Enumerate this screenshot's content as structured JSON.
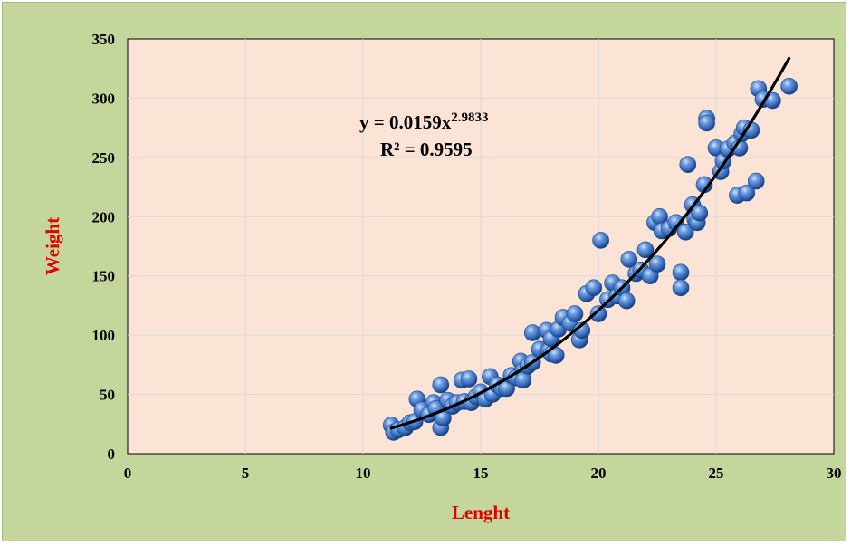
{
  "chart_data": {
    "type": "scatter",
    "title": "",
    "xlabel": "Lenght",
    "ylabel": "Weight",
    "xlim": [
      0,
      30
    ],
    "ylim": [
      0,
      350
    ],
    "x_ticks": [
      "0",
      "5",
      "10",
      "15",
      "20",
      "25",
      "30"
    ],
    "y_ticks": [
      "0",
      "50",
      "100",
      "150",
      "200",
      "250",
      "300",
      "350"
    ],
    "grid": true,
    "legend": "none",
    "trendline": {
      "type": "power",
      "coefficient": 0.0159,
      "exponent": 2.9833,
      "x_range": [
        11.2,
        28.1
      ],
      "equation_label": {
        "prefix": "y = 0.0159x",
        "exponent": "2.9833"
      },
      "r2_label": "R² = 0.9595"
    },
    "series": [
      {
        "points": [
          [
            11.2,
            24
          ],
          [
            11.3,
            18
          ],
          [
            11.5,
            20
          ],
          [
            11.8,
            22
          ],
          [
            12.0,
            26
          ],
          [
            12.2,
            27
          ],
          [
            12.3,
            46
          ],
          [
            12.5,
            37
          ],
          [
            12.8,
            33
          ],
          [
            13.0,
            43
          ],
          [
            13.1,
            38
          ],
          [
            13.3,
            58
          ],
          [
            13.3,
            22
          ],
          [
            13.4,
            30
          ],
          [
            13.6,
            45
          ],
          [
            13.8,
            40
          ],
          [
            14.0,
            43
          ],
          [
            14.2,
            62
          ],
          [
            14.3,
            44
          ],
          [
            14.5,
            63
          ],
          [
            14.6,
            43
          ],
          [
            14.8,
            48
          ],
          [
            15.0,
            52
          ],
          [
            15.2,
            46
          ],
          [
            15.4,
            65
          ],
          [
            15.5,
            50
          ],
          [
            15.7,
            58
          ],
          [
            15.9,
            55
          ],
          [
            16.1,
            55
          ],
          [
            16.3,
            66
          ],
          [
            16.5,
            64
          ],
          [
            16.7,
            78
          ],
          [
            16.8,
            70
          ],
          [
            16.8,
            62
          ],
          [
            17.0,
            74
          ],
          [
            17.2,
            77
          ],
          [
            17.2,
            102
          ],
          [
            17.5,
            88
          ],
          [
            17.8,
            104
          ],
          [
            17.9,
            87
          ],
          [
            18.0,
            84
          ],
          [
            18.0,
            97
          ],
          [
            18.2,
            83
          ],
          [
            18.3,
            105
          ],
          [
            18.5,
            115
          ],
          [
            18.8,
            110
          ],
          [
            19.0,
            118
          ],
          [
            19.2,
            96
          ],
          [
            19.3,
            104
          ],
          [
            19.5,
            135
          ],
          [
            19.8,
            140
          ],
          [
            20.0,
            118
          ],
          [
            20.1,
            180
          ],
          [
            20.4,
            130
          ],
          [
            20.6,
            144
          ],
          [
            20.8,
            133
          ],
          [
            21.0,
            140
          ],
          [
            21.2,
            129
          ],
          [
            21.3,
            164
          ],
          [
            21.6,
            152
          ],
          [
            21.8,
            155
          ],
          [
            22.0,
            172
          ],
          [
            22.2,
            150
          ],
          [
            22.4,
            195
          ],
          [
            22.5,
            160
          ],
          [
            22.6,
            200
          ],
          [
            22.7,
            188
          ],
          [
            23.0,
            190
          ],
          [
            23.3,
            195
          ],
          [
            23.5,
            153
          ],
          [
            23.5,
            140
          ],
          [
            23.7,
            187
          ],
          [
            23.8,
            244
          ],
          [
            24.0,
            210
          ],
          [
            24.1,
            198
          ],
          [
            24.2,
            195
          ],
          [
            24.3,
            203
          ],
          [
            24.5,
            227
          ],
          [
            24.6,
            283
          ],
          [
            24.6,
            279
          ],
          [
            25.0,
            258
          ],
          [
            25.2,
            238
          ],
          [
            25.3,
            247
          ],
          [
            25.5,
            257
          ],
          [
            25.8,
            262
          ],
          [
            25.9,
            218
          ],
          [
            26.0,
            258
          ],
          [
            26.1,
            270
          ],
          [
            26.2,
            275
          ],
          [
            26.3,
            220
          ],
          [
            26.5,
            273
          ],
          [
            26.7,
            230
          ],
          [
            26.8,
            308
          ],
          [
            27.0,
            299
          ],
          [
            27.4,
            298
          ],
          [
            28.1,
            310
          ]
        ]
      }
    ]
  },
  "colors": {
    "frame_background": "#c4d69b",
    "plot_background": "#fbe3d6",
    "marker": "#3a74c4",
    "trendline": "#000000",
    "axis_title": "#e00000"
  }
}
